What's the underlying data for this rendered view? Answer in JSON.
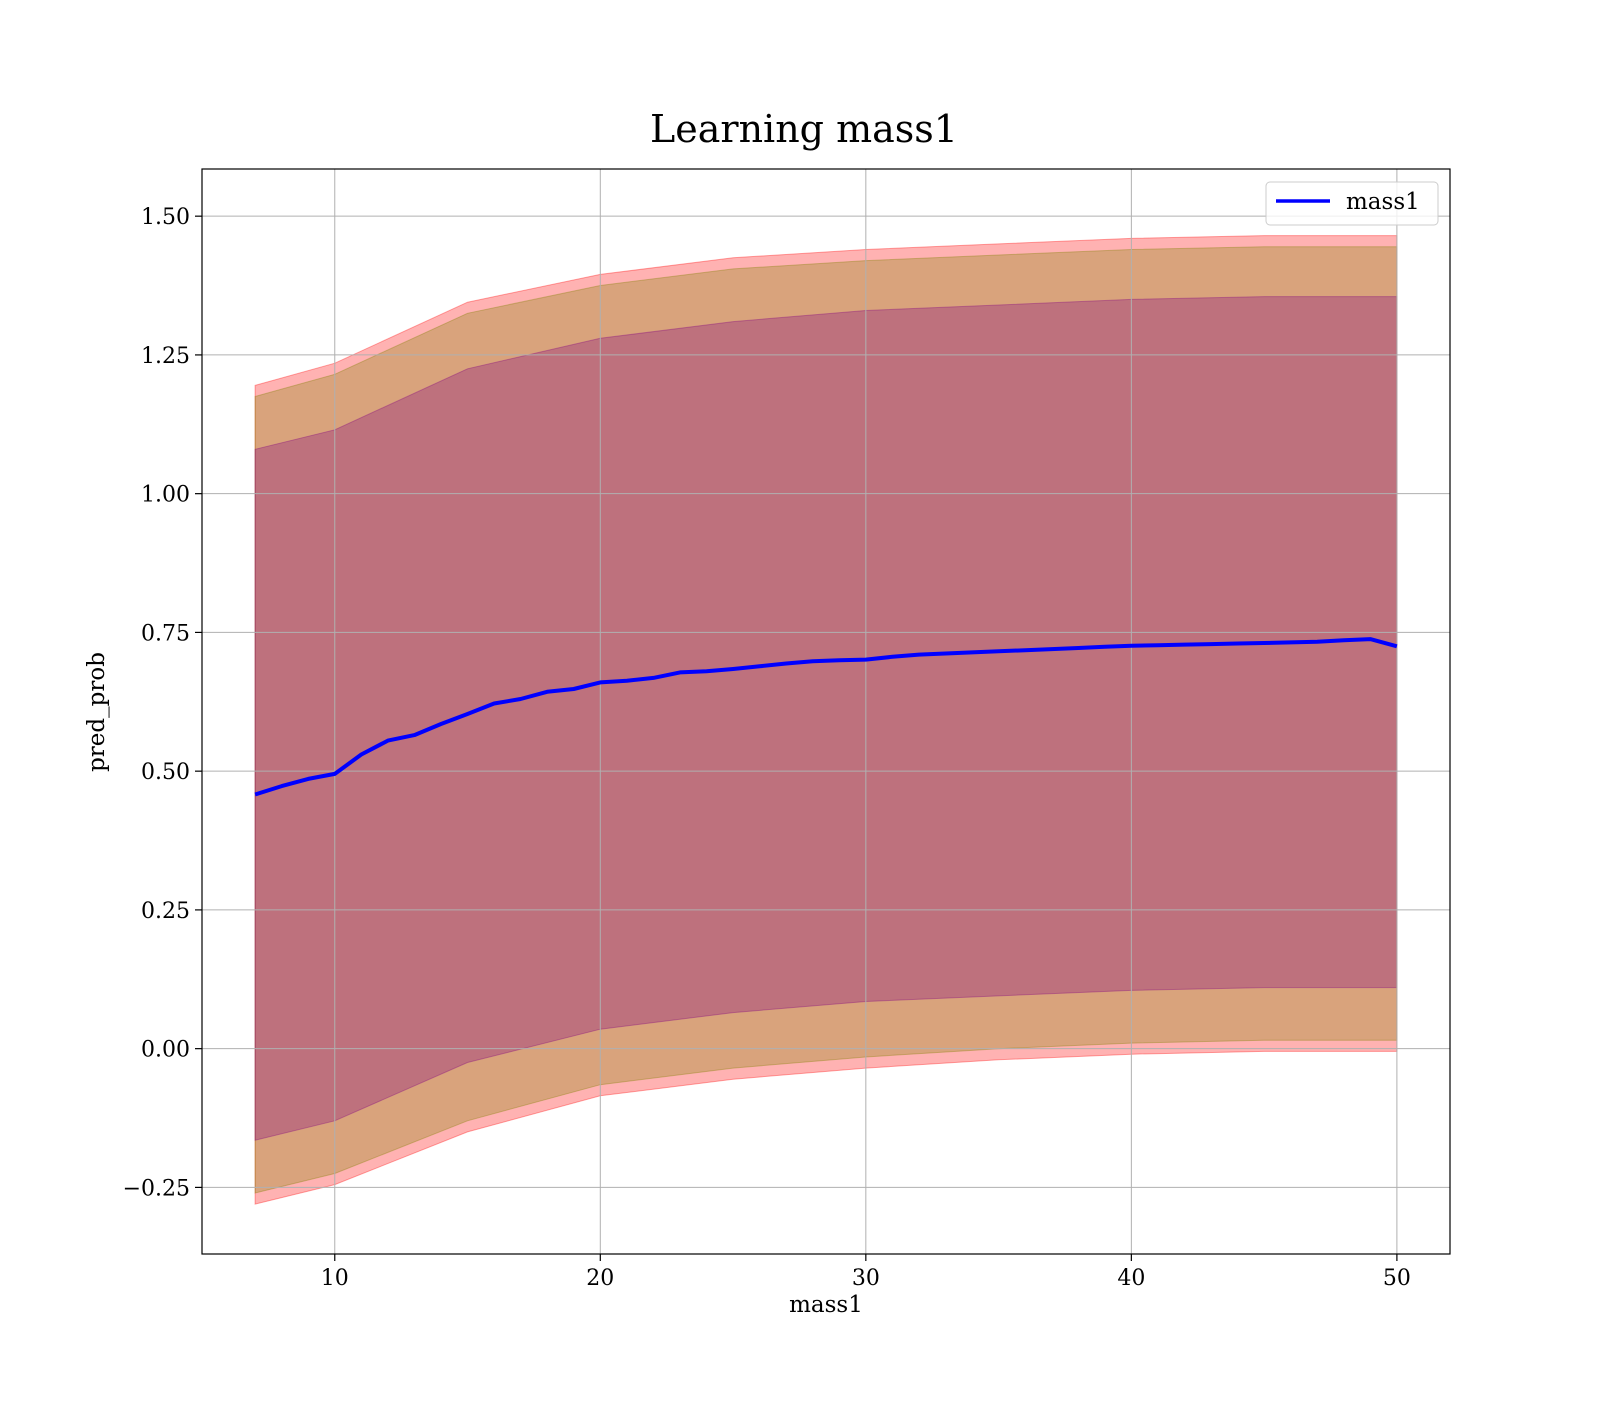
{
  "chart_data": {
    "type": "line",
    "title": "Learning mass1",
    "xlabel": "mass1",
    "ylabel": "pred_prob",
    "xlim": [
      5,
      52
    ],
    "ylim": [
      -0.37,
      1.585
    ],
    "x_ticks": [
      10,
      20,
      30,
      40,
      50
    ],
    "y_ticks": [
      -0.25,
      0.0,
      0.25,
      0.5,
      0.75,
      1.0,
      1.25,
      1.5
    ],
    "x_tick_labels": [
      "10",
      "20",
      "30",
      "40",
      "50"
    ],
    "y_tick_labels": [
      "−0.25",
      "0.00",
      "0.25",
      "0.50",
      "0.75",
      "1.00",
      "1.25",
      "1.50"
    ],
    "grid": true,
    "legend": {
      "position": "top-right",
      "entries": [
        "mass1"
      ]
    },
    "series": [
      {
        "name": "mass1",
        "color": "#0000ff",
        "x": [
          7,
          8,
          9,
          10,
          11,
          12,
          13,
          14,
          15,
          16,
          17,
          18,
          19,
          20,
          21,
          22,
          23,
          24,
          25,
          26,
          27,
          28,
          29,
          30,
          31,
          32,
          33,
          34,
          35,
          36,
          37,
          38,
          39,
          40,
          41,
          42,
          43,
          44,
          45,
          46,
          47,
          48,
          49,
          50
        ],
        "y": [
          0.458,
          0.473,
          0.486,
          0.495,
          0.53,
          0.555,
          0.565,
          0.585,
          0.603,
          0.622,
          0.63,
          0.643,
          0.648,
          0.66,
          0.663,
          0.668,
          0.678,
          0.68,
          0.684,
          0.689,
          0.694,
          0.698,
          0.7,
          0.701,
          0.706,
          0.71,
          0.712,
          0.714,
          0.716,
          0.718,
          0.72,
          0.722,
          0.724,
          0.726,
          0.727,
          0.728,
          0.729,
          0.73,
          0.731,
          0.732,
          0.733,
          0.736,
          0.738,
          0.725
        ]
      }
    ],
    "bands": [
      {
        "color": "#ff0000",
        "opacity": 0.3,
        "x": [
          7,
          10,
          15,
          20,
          25,
          30,
          35,
          40,
          45,
          50
        ],
        "upper": [
          1.195,
          1.235,
          1.345,
          1.395,
          1.425,
          1.44,
          1.45,
          1.46,
          1.465,
          1.465
        ],
        "lower": [
          -0.28,
          -0.245,
          -0.15,
          -0.085,
          -0.055,
          -0.035,
          -0.02,
          -0.01,
          -0.005,
          -0.005
        ]
      },
      {
        "color": "#808000",
        "opacity": 0.3,
        "x": [
          7,
          10,
          15,
          20,
          25,
          30,
          35,
          40,
          45,
          50
        ],
        "upper": [
          1.175,
          1.215,
          1.325,
          1.375,
          1.405,
          1.42,
          1.43,
          1.44,
          1.445,
          1.445
        ],
        "lower": [
          -0.26,
          -0.225,
          -0.13,
          -0.065,
          -0.035,
          -0.015,
          0.0,
          0.01,
          0.015,
          0.015
        ]
      },
      {
        "color": "#800080",
        "opacity": 0.3,
        "x": [
          7,
          10,
          15,
          20,
          25,
          30,
          35,
          40,
          45,
          50
        ],
        "upper": [
          1.08,
          1.115,
          1.225,
          1.28,
          1.31,
          1.33,
          1.34,
          1.35,
          1.355,
          1.355
        ],
        "lower": [
          -0.165,
          -0.13,
          -0.025,
          0.035,
          0.065,
          0.085,
          0.095,
          0.105,
          0.11,
          0.11
        ]
      }
    ]
  }
}
